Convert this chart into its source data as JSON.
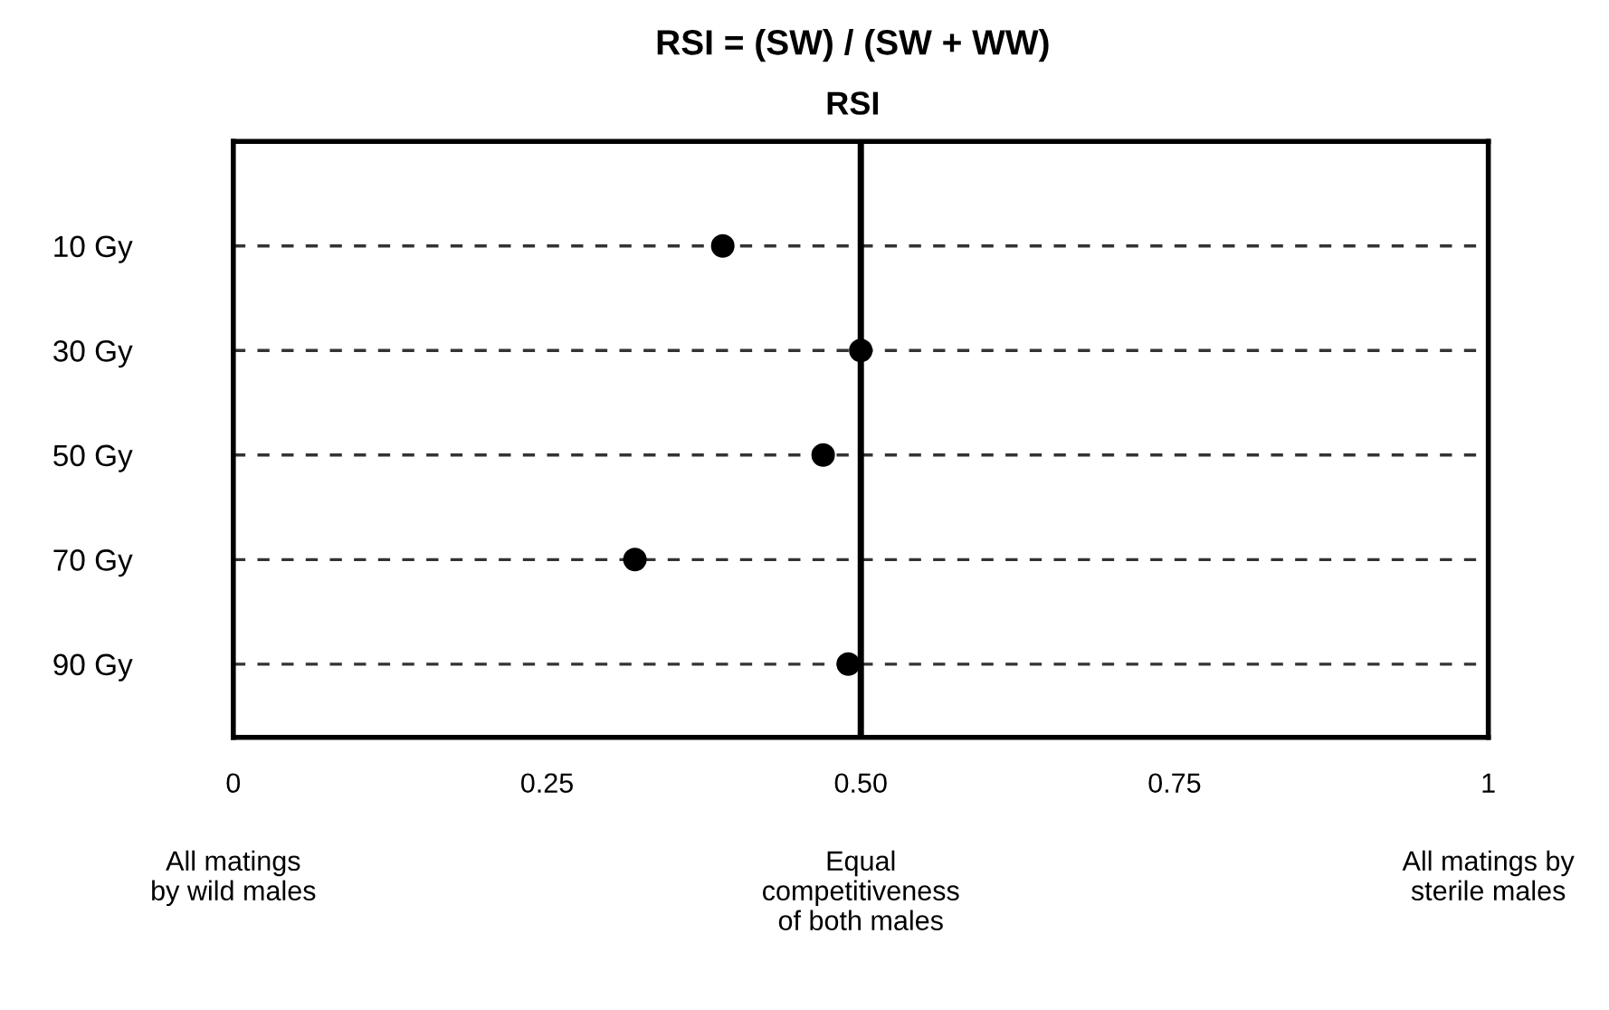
{
  "chart_data": {
    "type": "scatter",
    "title": "RSI = (SW) / (SW + WW)",
    "subtitle": "RSI",
    "orientation": "horizontal",
    "categories": [
      "10 Gy",
      "30 Gy",
      "50 Gy",
      "70 Gy",
      "90 Gy"
    ],
    "values": [
      0.39,
      0.5,
      0.47,
      0.32,
      0.49
    ],
    "color": "#000000",
    "marker": "circle",
    "xlim": [
      0,
      1
    ],
    "xticks": [
      0,
      {
        "value": 0.25,
        "label": "0.25"
      },
      {
        "value": 0.5,
        "label": "0.50"
      },
      {
        "value": 0.75,
        "label": "0.75"
      },
      1
    ],
    "ref_lines": [
      {
        "axis": "x",
        "value": 0.5,
        "color": "#000000"
      }
    ],
    "grid": "y",
    "annotations": [
      "All matings\nby wild males",
      "Equal\ncompetitiveness\nof both males",
      "All matings by\nsterile males"
    ]
  }
}
